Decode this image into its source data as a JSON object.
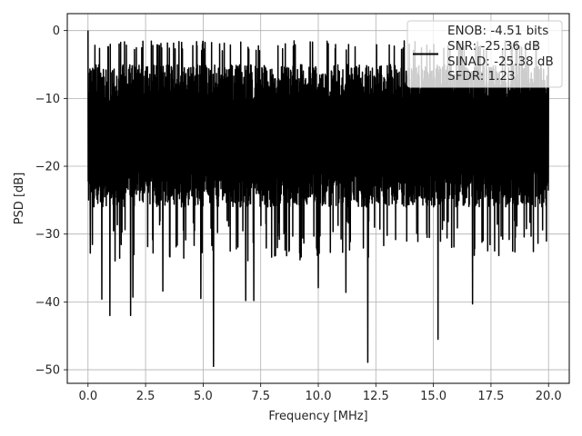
{
  "chart_data": {
    "type": "line",
    "xlabel": "Frequency [MHz]",
    "ylabel": "PSD [dB]",
    "xlim": [
      -0.9,
      20.9
    ],
    "ylim": [
      -52,
      2.5
    ],
    "xticks": [
      0.0,
      2.5,
      5.0,
      7.5,
      10.0,
      12.5,
      15.0,
      17.5,
      20.0
    ],
    "xtick_labels": [
      "0.0",
      "2.5",
      "5.0",
      "7.5",
      "10.0",
      "12.5",
      "15.0",
      "17.5",
      "20.0"
    ],
    "yticks": [
      0,
      -10,
      -20,
      -30,
      -40,
      -50
    ],
    "ytick_labels": [
      "0",
      "−10",
      "−20",
      "−30",
      "−40",
      "−50"
    ],
    "grid": true,
    "series_color": "#000000",
    "x_range": [
      0,
      20
    ],
    "band": {
      "upper_typical": -5,
      "lower_typical": -23,
      "floor_typical": -28
    },
    "peaks": [
      {
        "x": 0.0,
        "y": 0.0
      },
      {
        "x": 4.1,
        "y": -2.7
      },
      {
        "x": 7.3,
        "y": -2.9
      }
    ],
    "dips": [
      {
        "x": 0.1,
        "y": -32.8
      },
      {
        "x": 0.6,
        "y": -39.6
      },
      {
        "x": 0.95,
        "y": -42.0
      },
      {
        "x": 1.85,
        "y": -42.0
      },
      {
        "x": 1.95,
        "y": -39.3
      },
      {
        "x": 3.25,
        "y": -38.4
      },
      {
        "x": 4.9,
        "y": -39.5
      },
      {
        "x": 5.45,
        "y": -49.5
      },
      {
        "x": 6.85,
        "y": -39.8
      },
      {
        "x": 7.2,
        "y": -39.8
      },
      {
        "x": 10.0,
        "y": -37.9
      },
      {
        "x": 11.2,
        "y": -38.6
      },
      {
        "x": 12.15,
        "y": -48.9
      },
      {
        "x": 15.2,
        "y": -45.5
      },
      {
        "x": 16.7,
        "y": -40.3
      }
    ],
    "legend": {
      "position": "upper-right",
      "entries": [
        "ENOB: -4.51 bits",
        "SNR: -25.36 dB",
        "SINAD: -25.38 dB",
        "SFDR: 1.23"
      ]
    }
  }
}
